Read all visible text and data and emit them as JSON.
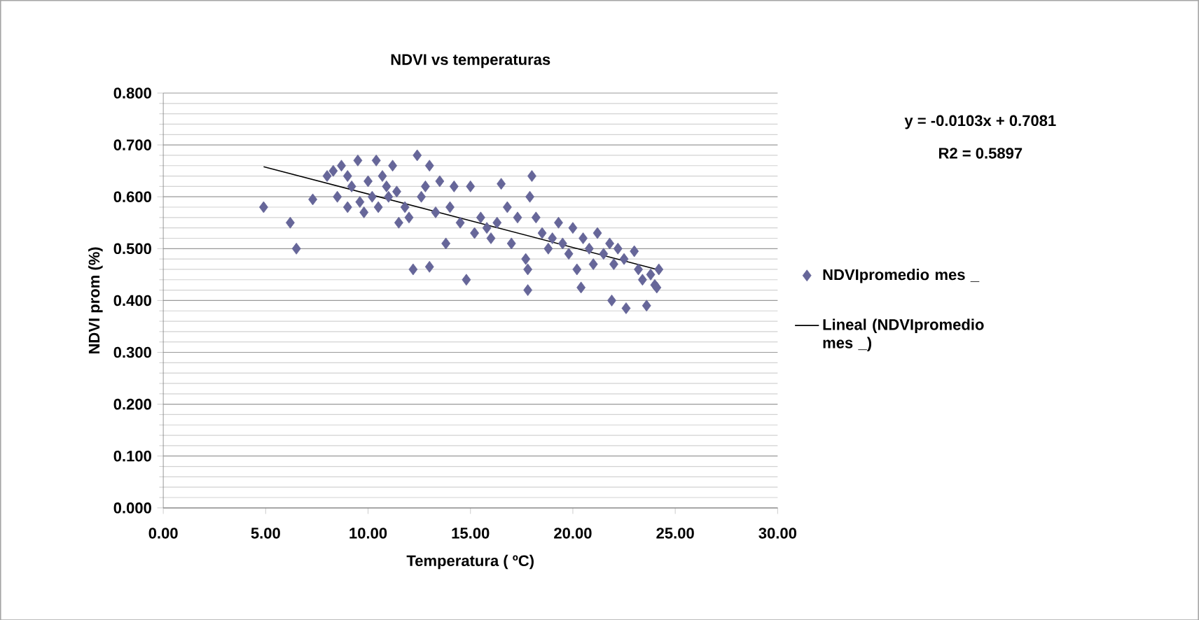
{
  "chart_data": {
    "type": "scatter",
    "title": "NDVI vs temperaturas",
    "xlabel": "Temperatura ( ºC)",
    "ylabel": "NDVI prom (%)",
    "xlim": [
      0,
      30
    ],
    "ylim": [
      0,
      0.8
    ],
    "xticks": [
      {
        "value": 0,
        "label": "0.00"
      },
      {
        "value": 5,
        "label": "5.00"
      },
      {
        "value": 10,
        "label": "10.00"
      },
      {
        "value": 15,
        "label": "15.00"
      },
      {
        "value": 20,
        "label": "20.00"
      },
      {
        "value": 25,
        "label": "25.00"
      },
      {
        "value": 30,
        "label": "30.00"
      }
    ],
    "yticks": [
      {
        "value": 0,
        "label": "0.000"
      },
      {
        "value": 0.1,
        "label": "0.100"
      },
      {
        "value": 0.2,
        "label": "0.200"
      },
      {
        "value": 0.3,
        "label": "0.300"
      },
      {
        "value": 0.4,
        "label": "0.400"
      },
      {
        "value": 0.5,
        "label": "0.500"
      },
      {
        "value": 0.6,
        "label": "0.600"
      },
      {
        "value": 0.7,
        "label": "0.700"
      },
      {
        "value": 0.8,
        "label": "0.800"
      }
    ],
    "grid": "y",
    "legend": "right",
    "marker": "diamond",
    "annotations": [
      "y = -0.0103x + 0.7081",
      "R2 = 0.5897"
    ],
    "series": [
      {
        "name": "NDVIpromedio mes _",
        "color": "#666699",
        "x": [
          4.9,
          6.2,
          6.5,
          7.3,
          8.0,
          8.3,
          8.5,
          8.7,
          9.0,
          9.0,
          9.2,
          9.5,
          9.6,
          9.8,
          10.0,
          10.2,
          10.4,
          10.5,
          10.7,
          10.9,
          11.0,
          11.2,
          11.4,
          11.5,
          11.8,
          12.0,
          12.2,
          12.4,
          12.6,
          12.8,
          13.0,
          13.0,
          13.3,
          13.5,
          13.8,
          14.0,
          14.2,
          14.5,
          14.8,
          15.0,
          15.2,
          15.5,
          15.8,
          16.0,
          16.3,
          16.5,
          16.8,
          17.0,
          17.3,
          17.7,
          17.8,
          17.8,
          17.9,
          18.0,
          18.2,
          18.5,
          18.8,
          19.0,
          19.3,
          19.5,
          19.8,
          20.0,
          20.2,
          20.4,
          20.5,
          20.8,
          21.0,
          21.2,
          21.5,
          21.8,
          22.0,
          22.2,
          22.5,
          21.9,
          22.6,
          23.0,
          23.2,
          23.4,
          23.6,
          23.8,
          24.0,
          24.2,
          24.1
        ],
        "values": [
          0.58,
          0.55,
          0.5,
          0.595,
          0.64,
          0.65,
          0.6,
          0.66,
          0.64,
          0.58,
          0.62,
          0.67,
          0.59,
          0.57,
          0.63,
          0.6,
          0.67,
          0.58,
          0.64,
          0.62,
          0.6,
          0.66,
          0.61,
          0.55,
          0.58,
          0.56,
          0.46,
          0.68,
          0.6,
          0.62,
          0.465,
          0.66,
          0.57,
          0.63,
          0.51,
          0.58,
          0.62,
          0.55,
          0.44,
          0.62,
          0.53,
          0.56,
          0.54,
          0.52,
          0.55,
          0.625,
          0.58,
          0.51,
          0.56,
          0.48,
          0.42,
          0.46,
          0.6,
          0.64,
          0.56,
          0.53,
          0.5,
          0.52,
          0.55,
          0.51,
          0.49,
          0.54,
          0.46,
          0.425,
          0.52,
          0.5,
          0.47,
          0.53,
          0.49,
          0.51,
          0.47,
          0.5,
          0.48,
          0.4,
          0.385,
          0.495,
          0.46,
          0.44,
          0.39,
          0.45,
          0.43,
          0.46,
          0.425
        ]
      },
      {
        "name": "Lineal (NDVIpromedio mes _)",
        "type": "line",
        "marker": "none",
        "color": "#000000",
        "x": [
          4.9,
          24.2
        ],
        "values": [
          0.658,
          0.459
        ]
      }
    ]
  }
}
